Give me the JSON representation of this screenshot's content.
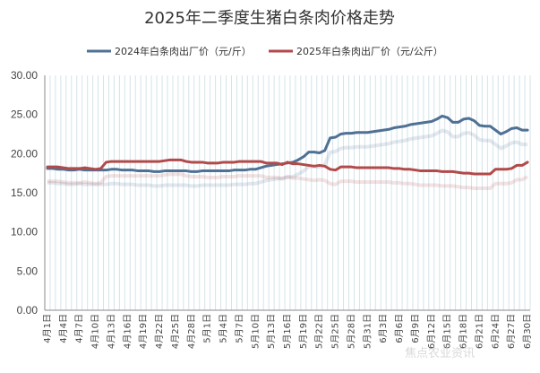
{
  "chart_data": {
    "type": "line",
    "title": "2025年二季度生猪白条肉价格走势",
    "xlabel": "",
    "ylabel": "",
    "ylim": [
      0,
      30
    ],
    "yticks": [
      "0.00",
      "5.00",
      "10.00",
      "15.00",
      "20.00",
      "25.00",
      "30.00"
    ],
    "grid": "vertical",
    "legend_position": "top-center",
    "watermark": "焦点农业资讯",
    "x": [
      "4月1日",
      "4月2日",
      "4月3日",
      "4月4日",
      "4月5日",
      "4月6日",
      "4月7日",
      "4月8日",
      "4月9日",
      "4月10日",
      "4月11日",
      "4月12日",
      "4月13日",
      "4月14日",
      "4月15日",
      "4月16日",
      "4月17日",
      "4月18日",
      "4月19日",
      "4月20日",
      "4月21日",
      "4月22日",
      "4月23日",
      "4月24日",
      "4月25日",
      "4月26日",
      "4月27日",
      "4月28日",
      "4月29日",
      "4月30日",
      "5月1日",
      "5月2日",
      "5月3日",
      "5月4日",
      "5月5日",
      "5月6日",
      "5月7日",
      "5月8日",
      "5月9日",
      "5月10日",
      "5月11日",
      "5月12日",
      "5月13日",
      "5月14日",
      "5月15日",
      "5月16日",
      "5月17日",
      "5月18日",
      "5月19日",
      "5月20日",
      "5月21日",
      "5月22日",
      "5月23日",
      "5月24日",
      "5月25日",
      "5月26日",
      "5月27日",
      "5月28日",
      "5月29日",
      "5月30日",
      "5月31日",
      "6月1日",
      "6月2日",
      "6月3日",
      "6月4日",
      "6月5日",
      "6月6日",
      "6月7日",
      "6月8日",
      "6月9日",
      "6月10日",
      "6月11日",
      "6月12日",
      "6月13日",
      "6月14日",
      "6月15日",
      "6月16日",
      "6月17日",
      "6月18日",
      "6月19日",
      "6月20日",
      "6月21日",
      "6月22日",
      "6月23日",
      "6月24日",
      "6月25日",
      "6月26日",
      "6月27日",
      "6月28日",
      "6月29日",
      "6月30日"
    ],
    "xtick_labels": [
      "4月1日",
      "4月4日",
      "4月7日",
      "4月10日",
      "4月13日",
      "4月16日",
      "4月19日",
      "4月22日",
      "4月25日",
      "4月28日",
      "5月1日",
      "5月4日",
      "5月7日",
      "5月10日",
      "5月13日",
      "5月16日",
      "5月19日",
      "5月22日",
      "5月25日",
      "5月28日",
      "5月31日",
      "6月3日",
      "6月6日",
      "6月9日",
      "6月12日",
      "6月15日",
      "6月18日",
      "6月21日",
      "6月24日",
      "6月27日",
      "6月30日"
    ],
    "series": [
      {
        "name": "2024年白条肉出厂价（元/斤）",
        "color": "#4f7194",
        "values": [
          18.1,
          18.1,
          18.0,
          18.0,
          17.9,
          17.9,
          18.0,
          17.9,
          17.9,
          17.9,
          17.9,
          17.9,
          18.0,
          18.0,
          17.9,
          17.9,
          17.9,
          17.8,
          17.8,
          17.8,
          17.7,
          17.7,
          17.8,
          17.8,
          17.8,
          17.8,
          17.8,
          17.7,
          17.7,
          17.8,
          17.8,
          17.8,
          17.8,
          17.8,
          17.8,
          17.9,
          17.9,
          17.9,
          18.0,
          18.0,
          18.2,
          18.4,
          18.5,
          18.6,
          18.7,
          18.8,
          18.9,
          19.2,
          19.6,
          20.2,
          20.2,
          20.1,
          20.4,
          22.0,
          22.1,
          22.5,
          22.6,
          22.6,
          22.7,
          22.7,
          22.7,
          22.8,
          22.9,
          23.0,
          23.1,
          23.3,
          23.4,
          23.5,
          23.7,
          23.8,
          23.9,
          24.0,
          24.1,
          24.4,
          24.8,
          24.6,
          24.0,
          24.0,
          24.4,
          24.5,
          24.2,
          23.6,
          23.5,
          23.5,
          23.0,
          22.5,
          22.8,
          23.2,
          23.3,
          23.0,
          23.0
        ]
      },
      {
        "name": "2025年白条肉出厂价（元/公斤）",
        "color": "#b34a4a",
        "values": [
          18.3,
          18.3,
          18.3,
          18.2,
          18.1,
          18.1,
          18.1,
          18.2,
          18.1,
          18.0,
          18.1,
          18.9,
          19.0,
          19.0,
          19.0,
          19.0,
          19.0,
          19.0,
          19.0,
          19.0,
          19.0,
          19.0,
          19.1,
          19.2,
          19.2,
          19.2,
          19.0,
          18.9,
          18.9,
          18.9,
          18.8,
          18.8,
          18.8,
          18.9,
          18.9,
          18.9,
          19.0,
          19.0,
          19.0,
          19.0,
          19.0,
          18.8,
          18.8,
          18.8,
          18.6,
          18.9,
          18.7,
          18.7,
          18.6,
          18.5,
          18.4,
          18.5,
          18.4,
          18.0,
          17.9,
          18.3,
          18.3,
          18.3,
          18.2,
          18.2,
          18.2,
          18.2,
          18.2,
          18.2,
          18.2,
          18.1,
          18.1,
          18.0,
          18.0,
          17.9,
          17.8,
          17.8,
          17.8,
          17.8,
          17.7,
          17.7,
          17.7,
          17.6,
          17.5,
          17.5,
          17.4,
          17.4,
          17.4,
          17.4,
          18.0,
          18.0,
          18.0,
          18.1,
          18.5,
          18.5,
          18.9
        ]
      }
    ]
  }
}
